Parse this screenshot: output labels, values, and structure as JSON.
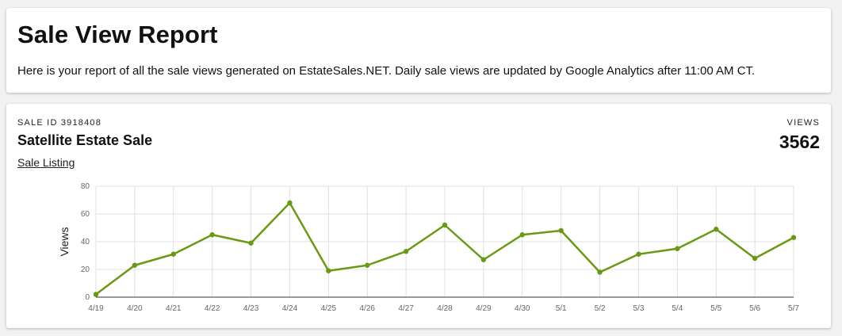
{
  "header": {
    "title": "Sale View Report",
    "description": "Here is your report of all the sale views generated on EstateSales.NET. Daily sale views are updated by Google Analytics after 11:00 AM CT."
  },
  "sale": {
    "id_label": "SALE ID 3918408",
    "title": "Satellite Estate Sale",
    "link_label": "Sale Listing",
    "views_label": "VIEWS",
    "views_count": "3562"
  },
  "colors": {
    "line": "#6a9a14",
    "grid": "#e0e0e0",
    "axis": "#333333"
  },
  "chart_data": {
    "type": "line",
    "title": "",
    "xlabel": "",
    "ylabel": "Views",
    "ylim": [
      0,
      80
    ],
    "yticks": [
      0,
      20,
      40,
      60,
      80
    ],
    "grid": true,
    "categories": [
      "4/19",
      "4/20",
      "4/21",
      "4/22",
      "4/23",
      "4/24",
      "4/25",
      "4/26",
      "4/27",
      "4/28",
      "4/29",
      "4/30",
      "5/1",
      "5/2",
      "5/3",
      "5/4",
      "5/5",
      "5/6",
      "5/7"
    ],
    "series": [
      {
        "values": [
          2,
          23,
          31,
          45,
          39,
          68,
          19,
          23,
          33,
          52,
          27,
          45,
          48,
          18,
          31,
          35,
          49,
          28,
          43
        ]
      }
    ]
  }
}
